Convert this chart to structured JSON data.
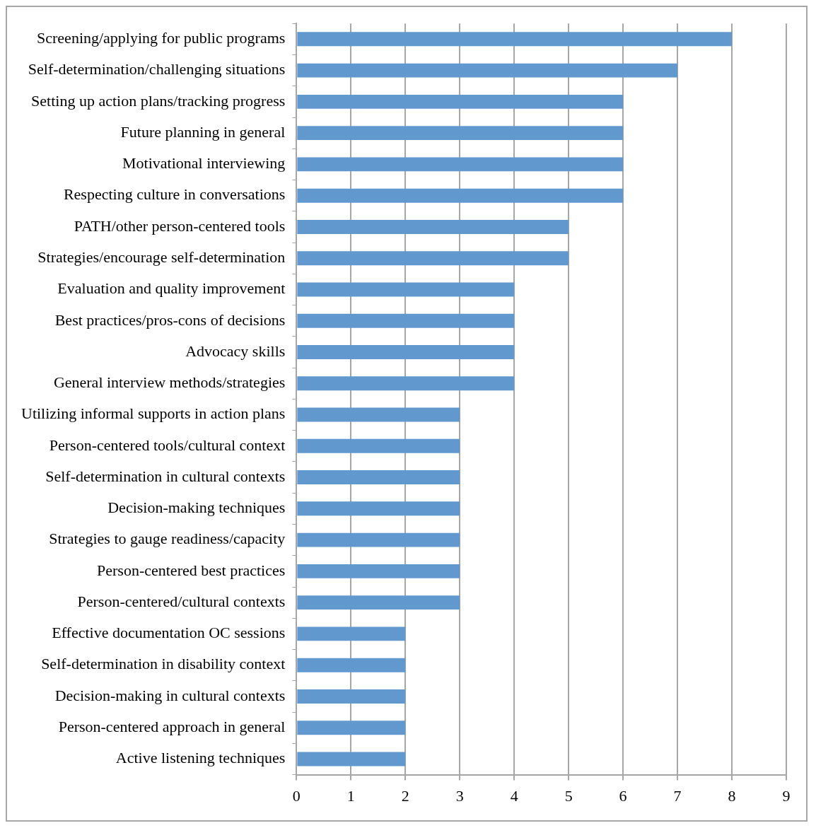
{
  "chart_data": {
    "type": "bar",
    "orientation": "horizontal",
    "categories": [
      "Screening/applying for public programs",
      "Self-determination/challenging situations",
      "Setting up action plans/tracking progress",
      "Future planning in general",
      "Motivational interviewing",
      "Respecting culture in conversations",
      "PATH/other person-centered tools",
      "Strategies/encourage self-determination",
      "Evaluation and quality improvement",
      "Best practices/pros-cons of decisions",
      "Advocacy skills",
      "General interview methods/strategies",
      "Utilizing informal supports in action plans",
      "Person-centered tools/cultural context",
      "Self-determination in cultural contexts",
      "Decision-making techniques",
      "Strategies to gauge readiness/capacity",
      "Person-centered best practices",
      "Person-centered/cultural contexts",
      "Effective documentation OC sessions",
      "Self-determination in disability context",
      "Decision-making in cultural contexts",
      "Person-centered approach in general",
      "Active listening techniques"
    ],
    "values": [
      8,
      7,
      6,
      6,
      6,
      6,
      5,
      5,
      4,
      4,
      4,
      4,
      3,
      3,
      3,
      3,
      3,
      3,
      3,
      2,
      2,
      2,
      2,
      2
    ],
    "color": "#6199cf",
    "xlim": [
      0,
      9
    ],
    "xticks": [
      0,
      1,
      2,
      3,
      4,
      5,
      6,
      7,
      8,
      9
    ],
    "grid": "x",
    "legend": false
  }
}
